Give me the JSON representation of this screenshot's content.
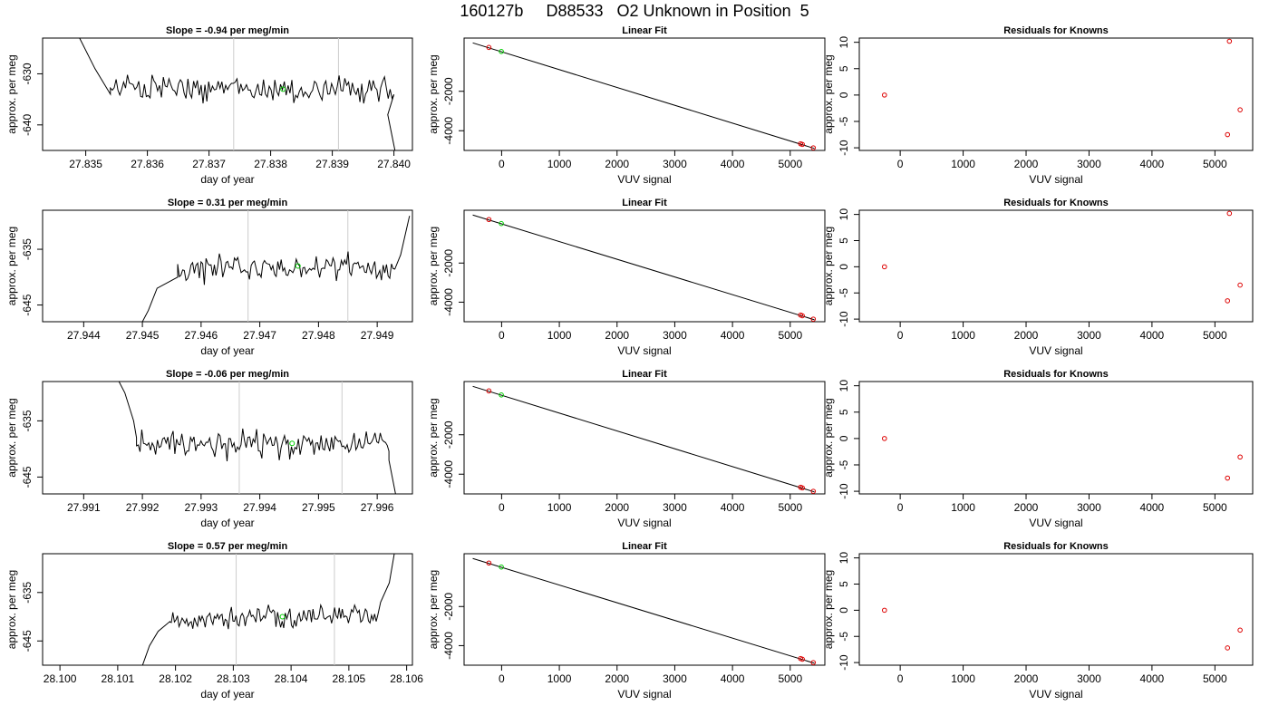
{
  "figure_title": "160127b     D88533   O2 Unknown in Position  5",
  "colors": {
    "trace": "#000000",
    "marker_green": "#00cc00",
    "known_red": "#dd0000",
    "divider": "#cccccc"
  },
  "chart_data": [
    {
      "type": "line",
      "row": 0,
      "title": "Slope =  -0.94  per meg/min",
      "xlabel": "day of year",
      "ylabel": "approx. per meg",
      "xlim": [
        27.8343,
        27.8403
      ],
      "ylim": [
        -645,
        -623
      ],
      "xticks": [
        27.835,
        27.836,
        27.837,
        27.838,
        27.839,
        27.84
      ],
      "xtick_labels": [
        "27.835",
        "27.836",
        "27.837",
        "27.838",
        "27.839",
        "27.840"
      ],
      "yticks": [
        -640,
        -630
      ],
      "ytick_labels": [
        "-640",
        "-630"
      ],
      "vlines": [
        27.8374,
        27.8391
      ],
      "trace": {
        "start": 27.8354,
        "end": 27.84,
        "n": 150,
        "level": -633,
        "noise": 1.6,
        "drift": -0.6,
        "head": [
          [
            27.8347,
            -621
          ],
          [
            27.8349,
            -623
          ],
          [
            27.83515,
            -629
          ],
          [
            27.8354,
            -634
          ]
        ],
        "tail": [
          [
            27.8399,
            -638
          ],
          [
            27.83995,
            -641
          ],
          [
            27.8401,
            -650
          ]
        ]
      },
      "marker": {
        "x": 27.8382,
        "y": -633
      }
    },
    {
      "type": "scatter",
      "row": 0,
      "title": "Linear Fit",
      "xlabel": "VUV signal",
      "ylabel": "approx. per meg",
      "xlim": [
        -650,
        5600
      ],
      "ylim": [
        -5000,
        700
      ],
      "xticks": [
        0,
        1000,
        2000,
        3000,
        4000,
        5000
      ],
      "xtick_labels": [
        "0",
        "1000",
        "2000",
        "3000",
        "4000",
        "5000"
      ],
      "yticks": [
        -4000,
        -2000
      ],
      "ytick_labels": [
        "-4000",
        "-2000"
      ],
      "fit_line": {
        "x": [
          -500,
          5420
        ],
        "y": [
          455,
          -4900
        ]
      },
      "known_points": {
        "x": [
          -220,
          5180,
          5210,
          5400
        ],
        "y": [
          225,
          -4662,
          -4696,
          -4868
        ]
      },
      "unknown_points": {
        "x": [
          -5
        ],
        "y": [
          20
        ]
      }
    },
    {
      "type": "scatter",
      "row": 0,
      "title": "Residuals for Knowns",
      "xlabel": "VUV signal",
      "ylabel": "approx. per meg",
      "xlim": [
        -650,
        5600
      ],
      "ylim": [
        -10.5,
        10.8
      ],
      "xticks": [
        0,
        1000,
        2000,
        3000,
        4000,
        5000
      ],
      "xtick_labels": [
        "0",
        "1000",
        "2000",
        "3000",
        "4000",
        "5000"
      ],
      "yticks": [
        -10,
        -5,
        0,
        5,
        10
      ],
      "ytick_labels": [
        "-10",
        "-5",
        "0",
        "5",
        "10"
      ],
      "points": {
        "x": [
          -250,
          5200,
          5230,
          5400
        ],
        "y": [
          0,
          -7.5,
          10.2,
          -2.8
        ]
      }
    },
    {
      "type": "line",
      "row": 1,
      "title": "Slope =  0.31  per meg/min",
      "xlabel": "day of year",
      "ylabel": "approx. per meg",
      "xlim": [
        27.9433,
        27.9496
      ],
      "ylim": [
        -648,
        -628
      ],
      "xticks": [
        27.944,
        27.945,
        27.946,
        27.947,
        27.948,
        27.949
      ],
      "xtick_labels": [
        "27.944",
        "27.945",
        "27.946",
        "27.947",
        "27.948",
        "27.949"
      ],
      "yticks": [
        -645,
        -635
      ],
      "ytick_labels": [
        "-645",
        "-635"
      ],
      "vlines": [
        27.9468,
        27.9485
      ],
      "trace": {
        "start": 27.9456,
        "end": 27.9493,
        "n": 130,
        "level": -638.5,
        "noise": 1.5,
        "drift": 0.8,
        "head": [
          [
            27.94495,
            -649
          ],
          [
            27.9451,
            -646
          ],
          [
            27.94525,
            -642
          ],
          [
            27.9456,
            -640
          ]
        ],
        "tail": [
          [
            27.9494,
            -636
          ],
          [
            27.94955,
            -629
          ]
        ]
      },
      "marker": {
        "x": 27.94765,
        "y": -638
      }
    },
    {
      "type": "scatter",
      "row": 1,
      "title": "Linear Fit",
      "xlabel": "VUV signal",
      "ylabel": "approx. per meg",
      "xlim": [
        -650,
        5600
      ],
      "ylim": [
        -5000,
        700
      ],
      "xticks": [
        0,
        1000,
        2000,
        3000,
        4000,
        5000
      ],
      "xtick_labels": [
        "0",
        "1000",
        "2000",
        "3000",
        "4000",
        "5000"
      ],
      "yticks": [
        -4000,
        -2000
      ],
      "ytick_labels": [
        "-4000",
        "-2000"
      ],
      "fit_line": {
        "x": [
          -500,
          5420
        ],
        "y": [
          455,
          -4900
        ]
      },
      "known_points": {
        "x": [
          -220,
          5180,
          5210,
          5400
        ],
        "y": [
          225,
          -4662,
          -4696,
          -4868
        ]
      },
      "unknown_points": {
        "x": [
          -5
        ],
        "y": [
          20
        ]
      }
    },
    {
      "type": "scatter",
      "row": 1,
      "title": "Residuals for Knowns",
      "xlabel": "VUV signal",
      "ylabel": "approx. per meg",
      "xlim": [
        -650,
        5600
      ],
      "ylim": [
        -10.5,
        10.8
      ],
      "xticks": [
        0,
        1000,
        2000,
        3000,
        4000,
        5000
      ],
      "xtick_labels": [
        "0",
        "1000",
        "2000",
        "3000",
        "4000",
        "5000"
      ],
      "yticks": [
        -10,
        -5,
        0,
        5,
        10
      ],
      "ytick_labels": [
        "-10",
        "-5",
        "0",
        "5",
        "10"
      ],
      "points": {
        "x": [
          -250,
          5200,
          5230,
          5400
        ],
        "y": [
          0,
          -6.5,
          10.2,
          -3.5
        ]
      }
    },
    {
      "type": "line",
      "row": 2,
      "title": "Slope =  -0.06  per meg/min",
      "xlabel": "day of year",
      "ylabel": "approx. per meg",
      "xlim": [
        27.9903,
        27.9966
      ],
      "ylim": [
        -648,
        -628
      ],
      "xticks": [
        27.991,
        27.992,
        27.993,
        27.994,
        27.995,
        27.996
      ],
      "xtick_labels": [
        "27.991",
        "27.992",
        "27.993",
        "27.994",
        "27.995",
        "27.996"
      ],
      "yticks": [
        -645,
        -635
      ],
      "ytick_labels": [
        "-645",
        "-635"
      ],
      "vlines": [
        27.99365,
        27.9954
      ],
      "trace": {
        "start": 27.9919,
        "end": 27.9962,
        "n": 145,
        "level": -639,
        "noise": 1.6,
        "drift": 0,
        "head": [
          [
            27.99155,
            -627
          ],
          [
            27.9917,
            -630
          ],
          [
            27.99185,
            -635
          ],
          [
            27.9919,
            -638
          ]
        ],
        "tail": [
          [
            27.9962,
            -642
          ],
          [
            27.99635,
            -650
          ]
        ]
      },
      "marker": {
        "x": 27.99455,
        "y": -639
      }
    },
    {
      "type": "scatter",
      "row": 2,
      "title": "Linear Fit",
      "xlabel": "VUV signal",
      "ylabel": "approx. per meg",
      "xlim": [
        -650,
        5600
      ],
      "ylim": [
        -5000,
        700
      ],
      "xticks": [
        0,
        1000,
        2000,
        3000,
        4000,
        5000
      ],
      "xtick_labels": [
        "0",
        "1000",
        "2000",
        "3000",
        "4000",
        "5000"
      ],
      "yticks": [
        -4000,
        -2000
      ],
      "ytick_labels": [
        "-4000",
        "-2000"
      ],
      "fit_line": {
        "x": [
          -500,
          5420
        ],
        "y": [
          455,
          -4900
        ]
      },
      "known_points": {
        "x": [
          -220,
          5180,
          5210,
          5400
        ],
        "y": [
          225,
          -4662,
          -4696,
          -4868
        ]
      },
      "unknown_points": {
        "x": [
          -5
        ],
        "y": [
          20
        ]
      }
    },
    {
      "type": "scatter",
      "row": 2,
      "title": "Residuals for Knowns",
      "xlabel": "VUV signal",
      "ylabel": "approx. per meg",
      "xlim": [
        -650,
        5600
      ],
      "ylim": [
        -10.5,
        10.8
      ],
      "xticks": [
        0,
        1000,
        2000,
        3000,
        4000,
        5000
      ],
      "xtick_labels": [
        "0",
        "1000",
        "2000",
        "3000",
        "4000",
        "5000"
      ],
      "yticks": [
        -10,
        -5,
        0,
        5,
        10
      ],
      "ytick_labels": [
        "-10",
        "-5",
        "0",
        "5",
        "10"
      ],
      "points": {
        "x": [
          -250,
          5200,
          5400
        ],
        "y": [
          0,
          -7.5,
          -3.5
        ]
      }
    },
    {
      "type": "line",
      "row": 3,
      "title": "Slope =  0.57  per meg/min",
      "xlabel": "day of year",
      "ylabel": "approx. per meg",
      "xlim": [
        28.0997,
        28.1061
      ],
      "ylim": [
        -650,
        -627
      ],
      "xticks": [
        28.1,
        28.101,
        28.102,
        28.103,
        28.104,
        28.105,
        28.106
      ],
      "xtick_labels": [
        "28.100",
        "28.101",
        "28.102",
        "28.103",
        "28.104",
        "28.105",
        "28.106"
      ],
      "yticks": [
        -645,
        -635
      ],
      "ytick_labels": [
        "-645",
        "-635"
      ],
      "vlines": [
        28.10305,
        28.10475
      ],
      "trace": {
        "start": 28.1019,
        "end": 28.1055,
        "n": 135,
        "level": -640,
        "noise": 1.3,
        "drift": 0.9,
        "head": [
          [
            28.1014,
            -651
          ],
          [
            28.10155,
            -646
          ],
          [
            28.1017,
            -643
          ],
          [
            28.1019,
            -641
          ]
        ],
        "tail": [
          [
            28.10555,
            -637
          ],
          [
            28.1057,
            -633
          ],
          [
            28.1058,
            -626
          ]
        ]
      },
      "marker": {
        "x": 28.10385,
        "y": -640
      }
    },
    {
      "type": "scatter",
      "row": 3,
      "title": "Linear Fit",
      "xlabel": "VUV signal",
      "ylabel": "approx. per meg",
      "xlim": [
        -650,
        5600
      ],
      "ylim": [
        -5000,
        700
      ],
      "xticks": [
        0,
        1000,
        2000,
        3000,
        4000,
        5000
      ],
      "xtick_labels": [
        "0",
        "1000",
        "2000",
        "3000",
        "4000",
        "5000"
      ],
      "yticks": [
        -4000,
        -2000
      ],
      "ytick_labels": [
        "-4000",
        "-2000"
      ],
      "fit_line": {
        "x": [
          -500,
          5420
        ],
        "y": [
          455,
          -4900
        ]
      },
      "known_points": {
        "x": [
          -220,
          5180,
          5210,
          5400
        ],
        "y": [
          225,
          -4662,
          -4696,
          -4868
        ]
      },
      "unknown_points": {
        "x": [
          -5
        ],
        "y": [
          20
        ]
      }
    },
    {
      "type": "scatter",
      "row": 3,
      "title": "Residuals for Knowns",
      "xlabel": "VUV signal",
      "ylabel": "approx. per meg",
      "xlim": [
        -650,
        5600
      ],
      "ylim": [
        -10.5,
        10.8
      ],
      "xticks": [
        0,
        1000,
        2000,
        3000,
        4000,
        5000
      ],
      "xtick_labels": [
        "0",
        "1000",
        "2000",
        "3000",
        "4000",
        "5000"
      ],
      "yticks": [
        -10,
        -5,
        0,
        5,
        10
      ],
      "ytick_labels": [
        "-10",
        "-5",
        "0",
        "5",
        "10"
      ],
      "points": {
        "x": [
          -250,
          5200,
          5400
        ],
        "y": [
          0,
          -7.2,
          -3.8
        ]
      }
    }
  ]
}
